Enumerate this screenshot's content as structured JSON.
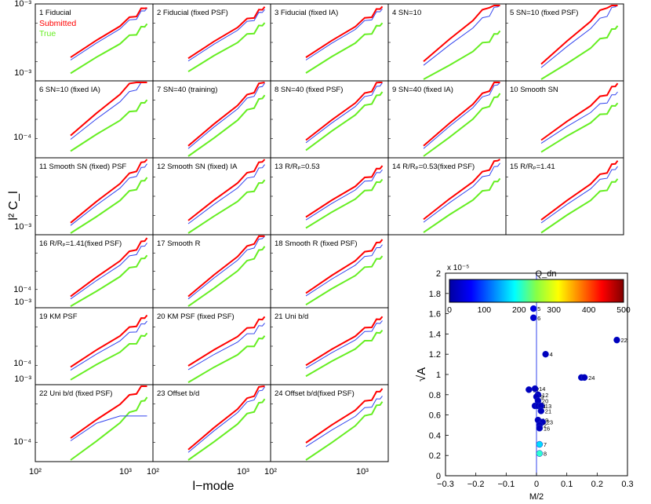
{
  "grid_axes": {
    "ylabel": "l² C_l",
    "xlabel": "l−mode",
    "y_ticks": [
      "10⁻³",
      "10⁻⁴"
    ],
    "y_top_tick": "10⁻³",
    "x_ticks": [
      "10²",
      "10³"
    ]
  },
  "legend": {
    "fiducial": "1 Fiducial",
    "submitted": "Submitted",
    "true": "True"
  },
  "colors": {
    "submitted": "#ff0000",
    "true": "#66ee22",
    "model": "#3344ee"
  },
  "panels": [
    {
      "label": "1 Fiducial",
      "s": [
        1.0,
        1.02,
        0.92,
        0.86
      ],
      "b": [
        1.0,
        1.02,
        0.92,
        0.86
      ],
      "g": [
        0.5,
        0.97,
        0.86,
        0.88
      ]
    },
    {
      "label": "2 Fiducial (fixed PSF)",
      "s": [
        0.92,
        1.0,
        1.0,
        0.88
      ],
      "b": [
        0.92,
        1.0,
        1.0,
        0.88
      ],
      "g": [
        0.6,
        0.95,
        0.94,
        0.9
      ]
    },
    {
      "label": "3 Fiducial (fixed IA)",
      "s": [
        1.0,
        1.0,
        0.95,
        0.88
      ],
      "b": [
        1.0,
        1.0,
        0.95,
        0.88
      ],
      "g": [
        0.52,
        0.98,
        0.9,
        0.88
      ]
    },
    {
      "label": "4 SN=10",
      "s": [
        0.65,
        1.3,
        1.2,
        1.25
      ],
      "b": [
        0.55,
        1.2,
        1.1,
        1.1
      ],
      "g": [
        0.0,
        1.0,
        0.9,
        0.85
      ]
    },
    {
      "label": "5 SN=10 (fixed PSF)",
      "s": [
        0.42,
        1.35,
        1.25,
        1.3
      ],
      "b": [
        0.35,
        1.25,
        1.1,
        1.15
      ],
      "g": [
        0.0,
        1.1,
        0.98,
        1.0
      ]
    },
    {
      "label": "6 SN=10 (fixed IA)",
      "s": [
        0.9,
        1.3,
        1.25,
        1.35
      ],
      "b": [
        0.8,
        1.2,
        1.15,
        1.25
      ],
      "g": [
        0.45,
        1.0,
        0.95,
        1.05
      ]
    },
    {
      "label": "7 SN=40 (training)",
      "s": [
        0.0,
        1.3,
        1.1,
        1.2
      ],
      "b": [
        0.0,
        1.28,
        1.08,
        1.18
      ],
      "g": [
        0.0,
        1.25,
        1.05,
        1.15
      ]
    },
    {
      "label": "8 SN=40 (fixed PSF)",
      "s": [
        0.5,
        1.2,
        1.0,
        1.15
      ],
      "b": [
        0.5,
        1.18,
        0.98,
        1.12
      ],
      "g": [
        0.5,
        1.15,
        0.95,
        1.1
      ]
    },
    {
      "label": "9 SN=40 (fixed IA)",
      "s": [
        0.0,
        1.35,
        1.0,
        1.05
      ],
      "b": [
        0.0,
        1.33,
        0.98,
        1.02
      ],
      "g": [
        0.0,
        1.3,
        0.95,
        1.0
      ]
    },
    {
      "label": "10 Smooth SN",
      "s": [
        0.5,
        1.1,
        1.1,
        1.05
      ],
      "b": [
        0.45,
        1.0,
        1.0,
        0.98
      ],
      "g": [
        0.4,
        0.95,
        0.95,
        0.9
      ]
    },
    {
      "label": "11 Smooth SN (fixed) PSF",
      "s": [
        0.0,
        1.25,
        1.15,
        1.1
      ],
      "b": [
        0.0,
        1.2,
        1.1,
        1.05
      ],
      "g": [
        0.0,
        1.15,
        0.95,
        0.9
      ]
    },
    {
      "label": "12 Smooth SN (fixed) IA",
      "s": [
        0.2,
        1.2,
        1.15,
        1.25
      ],
      "b": [
        0.15,
        1.15,
        1.1,
        1.15
      ],
      "g": [
        0.12,
        1.05,
        1.0,
        1.0
      ]
    },
    {
      "label": "13 R/Rₚ=0.53",
      "s": [
        0.5,
        1.0,
        0.95,
        0.95
      ],
      "b": [
        0.48,
        0.98,
        0.92,
        0.92
      ],
      "g": [
        0.45,
        0.95,
        0.9,
        0.9
      ]
    },
    {
      "label": "14 R/Rₚ=0.53(fixed PSF)",
      "s": [
        0.3,
        1.2,
        1.15,
        1.1
      ],
      "b": [
        0.28,
        1.15,
        1.08,
        1.05
      ],
      "g": [
        0.2,
        1.05,
        1.0,
        0.95
      ]
    },
    {
      "label": "15 R/Rₚ=1.41",
      "s": [
        0.25,
        1.15,
        1.1,
        1.1
      ],
      "b": [
        0.22,
        1.1,
        1.05,
        1.05
      ],
      "g": [
        0.18,
        1.05,
        1.0,
        1.0
      ]
    },
    {
      "label": "16 R/Rₚ=1.41(fixed PSF)",
      "s": [
        0.0,
        1.2,
        1.1,
        1.15
      ],
      "b": [
        0.0,
        1.15,
        1.05,
        1.05
      ],
      "g": [
        0.0,
        1.1,
        1.0,
        0.98
      ]
    },
    {
      "label": "17 Smooth R",
      "s": [
        0.0,
        1.35,
        1.1,
        1.2
      ],
      "b": [
        0.0,
        1.32,
        1.05,
        1.1
      ],
      "g": [
        0.0,
        1.3,
        1.0,
        1.05
      ]
    },
    {
      "label": "18 Smooth R (fixed PSF)",
      "s": [
        0.3,
        1.1,
        1.05,
        1.1
      ],
      "b": [
        0.28,
        1.05,
        1.0,
        1.05
      ],
      "g": [
        0.25,
        1.0,
        0.95,
        1.0
      ]
    },
    {
      "label": "19 KM PSF",
      "s": [
        0.5,
        1.0,
        1.05,
        0.95
      ],
      "b": [
        0.45,
        0.95,
        1.0,
        0.9
      ],
      "g": [
        0.35,
        0.9,
        0.95,
        0.9
      ]
    },
    {
      "label": "20 KM PSF (fixed PSF)",
      "s": [
        0.6,
        0.95,
        1.0,
        0.95
      ],
      "b": [
        0.5,
        0.9,
        0.95,
        0.9
      ],
      "g": [
        0.2,
        0.9,
        0.95,
        0.9
      ]
    },
    {
      "label": "21 Uni b/d",
      "s": [
        0.65,
        0.95,
        0.9,
        0.9
      ],
      "b": [
        0.62,
        0.93,
        0.88,
        0.88
      ],
      "g": [
        0.55,
        0.9,
        0.85,
        0.85
      ]
    },
    {
      "label": "22 Uni b/d (fixed PSF)",
      "s": [
        1.0,
        1.1,
        0.95,
        0.95
      ],
      "b": [
        1.0,
        1.05,
        0.9,
        0.5
      ],
      "g": [
        0.0,
        1.3,
        0.95,
        0.85
      ]
    },
    {
      "label": "23 Offset b/d",
      "s": [
        0.0,
        1.3,
        1.15,
        1.3
      ],
      "b": [
        0.0,
        1.28,
        1.1,
        1.25
      ],
      "g": [
        0.0,
        1.25,
        1.05,
        1.2
      ]
    },
    {
      "label": "24 Offset b/d(fixed PSF)",
      "s": [
        0.6,
        1.05,
        1.05,
        1.0
      ],
      "b": [
        0.5,
        0.98,
        1.0,
        0.95
      ],
      "g": [
        0.0,
        1.2,
        1.0,
        0.9
      ]
    }
  ],
  "chart_data": {
    "type": "scatter",
    "title": "",
    "xlabel": "M/2",
    "ylabel": "√A",
    "xlim": [
      -0.3,
      0.3
    ],
    "ylim": [
      0,
      2
    ],
    "y_scale_note": "x 10⁻⁵",
    "x_ticks": [
      "−0.3",
      "−0.2",
      "−0.1",
      "0",
      "0.1",
      "0.2",
      "0.3"
    ],
    "y_ticks": [
      "0",
      "0.2",
      "0.4",
      "0.6",
      "0.8",
      "1",
      "1.2",
      "1.4",
      "1.6",
      "1.8",
      "2"
    ],
    "colorbar": {
      "label": "Q_dn",
      "range": [
        0,
        500
      ],
      "ticks": [
        "0",
        "100",
        "200",
        "300",
        "400",
        "500"
      ]
    },
    "points": [
      {
        "id": "5",
        "x": -0.01,
        "y": 1.65,
        "q": 50
      },
      {
        "id": "6",
        "x": -0.01,
        "y": 1.56,
        "q": 40
      },
      {
        "id": "22",
        "x": 0.265,
        "y": 1.34,
        "q": 30
      },
      {
        "id": "4",
        "x": 0.03,
        "y": 1.2,
        "q": 30
      },
      {
        "id": "",
        "x": 0.148,
        "y": 0.97,
        "q": 30
      },
      {
        "id": "24",
        "x": 0.158,
        "y": 0.97,
        "q": 30
      },
      {
        "id": "17",
        "x": -0.025,
        "y": 0.85,
        "q": 30
      },
      {
        "id": "14",
        "x": -0.005,
        "y": 0.86,
        "q": 30
      },
      {
        "id": "12",
        "x": 0.005,
        "y": 0.8,
        "q": 30
      },
      {
        "id": "9",
        "x": 0.0,
        "y": 0.78,
        "q": 30
      },
      {
        "id": "20",
        "x": 0.005,
        "y": 0.74,
        "q": 30
      },
      {
        "id": "18",
        "x": -0.005,
        "y": 0.69,
        "q": 30
      },
      {
        "id": "3",
        "x": 0.005,
        "y": 0.69,
        "q": 30
      },
      {
        "id": "13",
        "x": 0.015,
        "y": 0.69,
        "q": 30
      },
      {
        "id": "21",
        "x": 0.015,
        "y": 0.64,
        "q": 30
      },
      {
        "id": "19",
        "x": 0.005,
        "y": 0.55,
        "q": 30
      },
      {
        "id": "23",
        "x": 0.02,
        "y": 0.53,
        "q": 30
      },
      {
        "id": "2",
        "x": 0.01,
        "y": 0.5,
        "q": 30
      },
      {
        "id": "16",
        "x": 0.01,
        "y": 0.47,
        "q": 30
      },
      {
        "id": "7",
        "x": 0.01,
        "y": 0.31,
        "q": 170
      },
      {
        "id": "8",
        "x": 0.01,
        "y": 0.22,
        "q": 210
      }
    ]
  }
}
